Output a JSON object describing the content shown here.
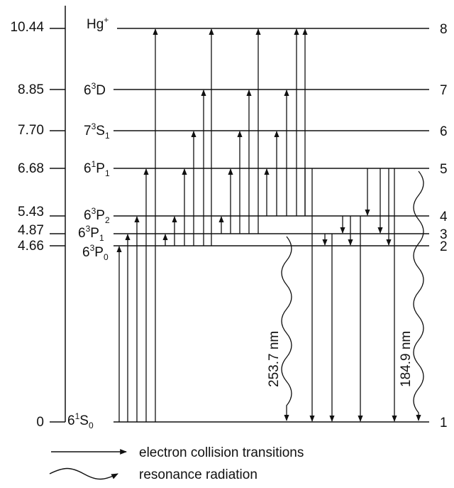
{
  "diagram": {
    "energies": [
      "10.44",
      "8.85",
      "7.70",
      "6.68",
      "5.43",
      "4.87",
      "4.66",
      "0"
    ],
    "levels": [
      {
        "index": "8",
        "energy": "10.44",
        "term_main": "Hg",
        "term_sup": "+",
        "term_sub": ""
      },
      {
        "index": "7",
        "energy": "8.85",
        "term_main": "6",
        "term_sup": "3",
        "term_rest": "D",
        "term_sub": ""
      },
      {
        "index": "6",
        "energy": "7.70",
        "term_main": "7",
        "term_sup": "3",
        "term_rest": "S",
        "term_sub": "1"
      },
      {
        "index": "5",
        "energy": "6.68",
        "term_main": "6",
        "term_sup": "1",
        "term_rest": "P",
        "term_sub": "1"
      },
      {
        "index": "4",
        "energy": "5.43",
        "term_main": "6",
        "term_sup": "3",
        "term_rest": "P",
        "term_sub": "2"
      },
      {
        "index": "3",
        "energy": "4.87",
        "term_main": "6",
        "term_sup": "3",
        "term_rest": "P",
        "term_sub": "1"
      },
      {
        "index": "2",
        "energy": "4.66",
        "term_main": "6",
        "term_sup": "3",
        "term_rest": "P",
        "term_sub": "0"
      },
      {
        "index": "1",
        "energy": "0",
        "term_main": "6",
        "term_sup": "1",
        "term_rest": "S",
        "term_sub": "0"
      }
    ],
    "wavelengths": [
      "253.7 nm",
      "184.9 nm"
    ],
    "legend": {
      "collision": "electron collision transitions",
      "resonance": "resonance radiation"
    },
    "colors": {
      "ink": "#111111",
      "background": "#ffffff"
    }
  }
}
